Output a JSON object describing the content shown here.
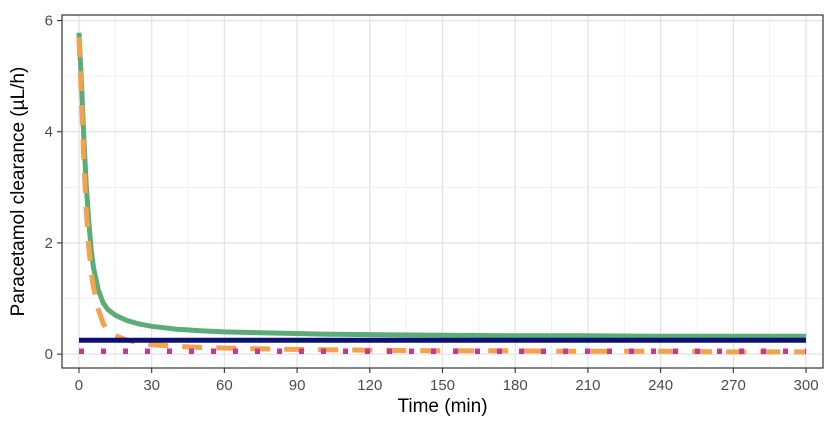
{
  "chart_data": {
    "type": "line",
    "title": "",
    "xlabel": "Time (min)",
    "ylabel": "Paracetamol clearance (µL/h)",
    "xlim": [
      -7,
      307
    ],
    "ylim": [
      -0.25,
      6.1
    ],
    "grid": true,
    "legend": "none",
    "x_ticks": [
      0,
      30,
      60,
      90,
      120,
      150,
      180,
      210,
      240,
      270,
      300
    ],
    "y_ticks": [
      0,
      2,
      4,
      6
    ],
    "series": [
      {
        "style": "solid",
        "color": "#5aac78",
        "x": [
          0,
          1,
          2,
          3,
          4,
          5,
          6,
          8,
          10,
          12,
          15,
          20,
          25,
          30,
          40,
          50,
          60,
          80,
          100,
          120,
          150,
          180,
          210,
          240,
          270,
          300
        ],
        "y": [
          5.78,
          4.9,
          3.9,
          3.05,
          2.4,
          1.9,
          1.55,
          1.15,
          0.92,
          0.8,
          0.7,
          0.6,
          0.54,
          0.5,
          0.45,
          0.42,
          0.4,
          0.38,
          0.36,
          0.35,
          0.34,
          0.33,
          0.33,
          0.32,
          0.32,
          0.32
        ]
      },
      {
        "style": "dashed",
        "color": "#f4a24c",
        "x": [
          0,
          1,
          2,
          3,
          4,
          5,
          6,
          8,
          10,
          12,
          15,
          20,
          25,
          30,
          40,
          50,
          60,
          80,
          100,
          120,
          150,
          180,
          210,
          240,
          270,
          300
        ],
        "y": [
          5.7,
          4.6,
          3.5,
          2.6,
          1.95,
          1.5,
          1.2,
          0.8,
          0.55,
          0.42,
          0.33,
          0.25,
          0.2,
          0.17,
          0.14,
          0.12,
          0.11,
          0.09,
          0.08,
          0.07,
          0.06,
          0.06,
          0.05,
          0.05,
          0.04,
          0.04
        ]
      },
      {
        "style": "solid",
        "color": "#0a1172",
        "x": [
          0,
          300
        ],
        "y": [
          0.25,
          0.25
        ]
      },
      {
        "style": "dotted",
        "color": "#c2399a",
        "x": [
          0,
          300
        ],
        "y": [
          0.05,
          0.05
        ]
      }
    ]
  }
}
